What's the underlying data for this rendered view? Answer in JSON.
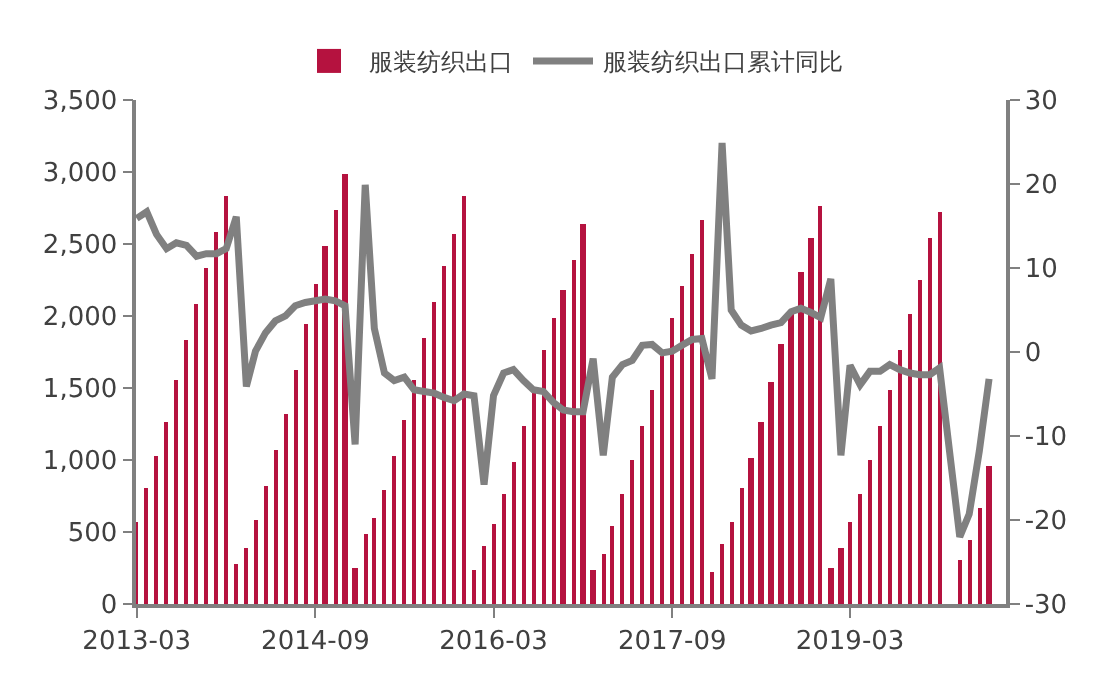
{
  "chart_data": {
    "type": "bar",
    "x": [
      "2013-03",
      "2013-04",
      "2013-05",
      "2013-06",
      "2013-07",
      "2013-08",
      "2013-09",
      "2013-10",
      "2013-11",
      "2013-12",
      "2014-01",
      "2014-02",
      "2014-03",
      "2014-04",
      "2014-05",
      "2014-06",
      "2014-07",
      "2014-08",
      "2014-09",
      "2014-10",
      "2014-11",
      "2014-12",
      "2015-01",
      "2015-02",
      "2015-03",
      "2015-04",
      "2015-05",
      "2015-06",
      "2015-07",
      "2015-08",
      "2015-09",
      "2015-10",
      "2015-11",
      "2015-12",
      "2016-01",
      "2016-02",
      "2016-03",
      "2016-04",
      "2016-05",
      "2016-06",
      "2016-07",
      "2016-08",
      "2016-09",
      "2016-10",
      "2016-11",
      "2016-12",
      "2017-01",
      "2017-02",
      "2017-03",
      "2017-04",
      "2017-05",
      "2017-06",
      "2017-07",
      "2017-08",
      "2017-09",
      "2017-10",
      "2017-11",
      "2017-12",
      "2018-01",
      "2018-02",
      "2018-03",
      "2018-04",
      "2018-05",
      "2018-06",
      "2018-07",
      "2018-08",
      "2018-09",
      "2018-10",
      "2018-11",
      "2018-12",
      "2019-01",
      "2019-02",
      "2019-03",
      "2019-04",
      "2019-05",
      "2019-06",
      "2019-07",
      "2019-08",
      "2019-09",
      "2019-10",
      "2019-11",
      "2019-12",
      "2020-02",
      "2020-03",
      "2020-04",
      "2020-05"
    ],
    "series": [
      {
        "name": "服装纺织出口",
        "color": "#b5123f",
        "values": [
          570,
          800,
          1030,
          1270,
          1550,
          1840,
          2090,
          2340,
          2580,
          2840,
          280,
          390,
          580,
          820,
          1070,
          1320,
          1630,
          1940,
          2220,
          2490,
          2730,
          2980,
          250,
          480,
          600,
          790,
          1030,
          1280,
          1550,
          1850,
          2100,
          2350,
          2570,
          2830,
          240,
          400,
          560,
          770,
          990,
          1230,
          1470,
          1760,
          1990,
          2180,
          2390,
          2640,
          230,
          350,
          540,
          770,
          1000,
          1230,
          1490,
          1720,
          1990,
          2210,
          2430,
          2670,
          220,
          420,
          570,
          800,
          1020,
          1270,
          1540,
          1810,
          2020,
          2300,
          2540,
          2770,
          250,
          390,
          570,
          760,
          1000,
          1240,
          1490,
          1770,
          2020,
          2250,
          2540,
          2720,
          300,
          450,
          660,
          960
        ]
      },
      {
        "name": "服装纺织出口累计同比",
        "type": "line",
        "axis": "y2",
        "color": "#808080",
        "values": [
          15.9,
          16.7,
          14.0,
          12.3,
          13.0,
          12.7,
          11.4,
          11.7,
          11.7,
          12.3,
          16.1,
          -4.1,
          0.1,
          2.3,
          3.7,
          4.3,
          5.5,
          5.9,
          6.1,
          6.3,
          6.1,
          5.5,
          -11.0,
          19.9,
          2.8,
          -2.5,
          -3.4,
          -3.0,
          -4.5,
          -4.7,
          -4.9,
          -5.4,
          -5.8,
          -5.0,
          -5.2,
          -15.8,
          -5.2,
          -2.5,
          -2.1,
          -3.4,
          -4.5,
          -4.7,
          -6.0,
          -6.9,
          -7.1,
          -7.1,
          -0.8,
          -12.3,
          -3.0,
          -1.5,
          -1.0,
          0.8,
          0.9,
          -0.1,
          0.1,
          0.8,
          1.5,
          1.6,
          -3.2,
          24.9,
          5.0,
          3.2,
          2.5,
          2.8,
          3.2,
          3.5,
          4.8,
          5.2,
          4.7,
          4.1,
          8.7,
          -12.3,
          -1.6,
          -3.9,
          -2.3,
          -2.3,
          -1.5,
          -2.1,
          -2.5,
          -2.7,
          -2.7,
          -1.9,
          -22.0,
          -19.3,
          -11.8,
          -3.2
        ]
      }
    ],
    "xlim": [
      "2013-02-27",
      "2020-06-22"
    ],
    "xticks": [
      "2013-03",
      "2014-09",
      "2016-03",
      "2017-09",
      "2019-03"
    ],
    "ylim": [
      0,
      3500
    ],
    "yticks": [
      0,
      {
        "value": 500,
        "label": "500"
      },
      {
        "value": 1000,
        "label": "1,000"
      },
      {
        "value": 1500,
        "label": "1,500"
      },
      {
        "value": 2000,
        "label": "2,000"
      },
      {
        "value": 2500,
        "label": "2,500"
      },
      {
        "value": 3000,
        "label": "3,000"
      },
      {
        "value": 3500,
        "label": "3,500"
      }
    ],
    "y2lim": [
      -30,
      30
    ],
    "y2ticks": [
      -30,
      -20,
      -10,
      0,
      10,
      20,
      30
    ],
    "legend": "top",
    "marker": "none",
    "line_style": "solid"
  }
}
